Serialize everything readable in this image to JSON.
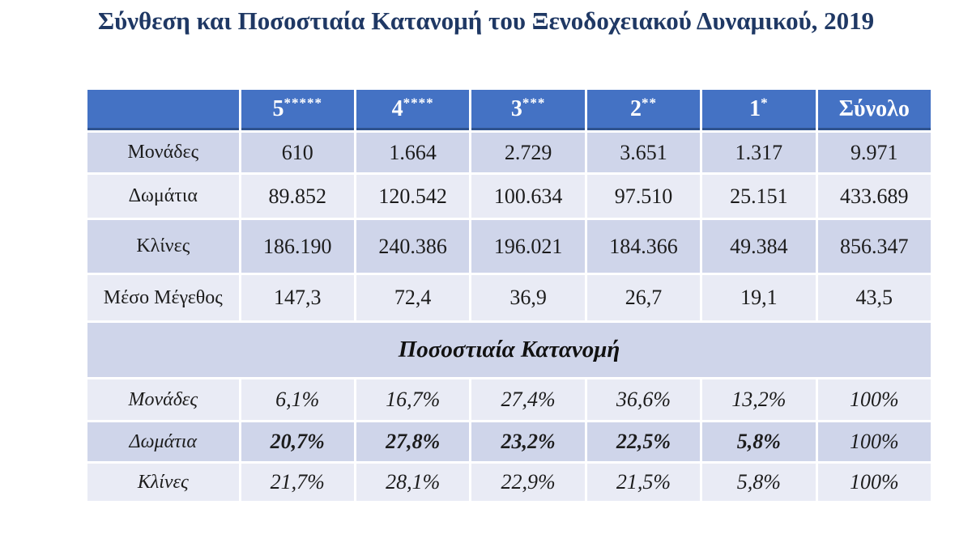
{
  "chart_data": {
    "type": "table",
    "title": "Σύνθεση και Ποσοστιαία Κατανομή του Ξενοδοχειακού Δυναμικού, 2019",
    "header_cells": [
      {
        "num": "5",
        "stars": "*****"
      },
      {
        "num": "4",
        "stars": "****"
      },
      {
        "num": "3",
        "stars": "***"
      },
      {
        "num": "2",
        "stars": "**"
      },
      {
        "num": "1",
        "stars": "*"
      },
      {
        "num": "Σύνολο",
        "stars": ""
      }
    ],
    "absolute_rows": [
      {
        "label": "Μονάδες",
        "values": [
          "610",
          "1.664",
          "2.729",
          "3.651",
          "1.317",
          "9.971"
        ]
      },
      {
        "label": "Δωμάτια",
        "values": [
          "89.852",
          "120.542",
          "100.634",
          "97.510",
          "25.151",
          "433.689"
        ]
      },
      {
        "label": "Κλίνες",
        "values": [
          "186.190",
          "240.386",
          "196.021",
          "184.366",
          "49.384",
          "856.347"
        ]
      },
      {
        "label": "Μέσο Μέγεθος",
        "values": [
          "147,3",
          "72,4",
          "36,9",
          "26,7",
          "19,1",
          "43,5"
        ]
      }
    ],
    "section_header": "Ποσοστιαία Κατανομή",
    "percent_rows": [
      {
        "label": "Μονάδες",
        "values": [
          "6,1%",
          "16,7%",
          "27,4%",
          "36,6%",
          "13,2%",
          "100%"
        ]
      },
      {
        "label": "Δωμάτια",
        "values": [
          "20,7%",
          "27,8%",
          "23,2%",
          "22,5%",
          "5,8%",
          "100%"
        ]
      },
      {
        "label": "Κλίνες",
        "values": [
          "21,7%",
          "28,1%",
          "22,9%",
          "21,5%",
          "5,8%",
          "100%"
        ]
      }
    ],
    "layout_hints": {
      "legend": "none",
      "grid": "white 3px gaps between cells",
      "banding": "alternating rows"
    },
    "colors": {
      "title_text": "#1F3864",
      "header_bg": "#4472C4",
      "header_text": "#FFFFFF",
      "header_underline": "#2E528F",
      "band_dark": "#CFD5EA",
      "band_light": "#E9EBF5",
      "body_text": "#1C1C1C",
      "background": "#FFFFFF"
    }
  }
}
